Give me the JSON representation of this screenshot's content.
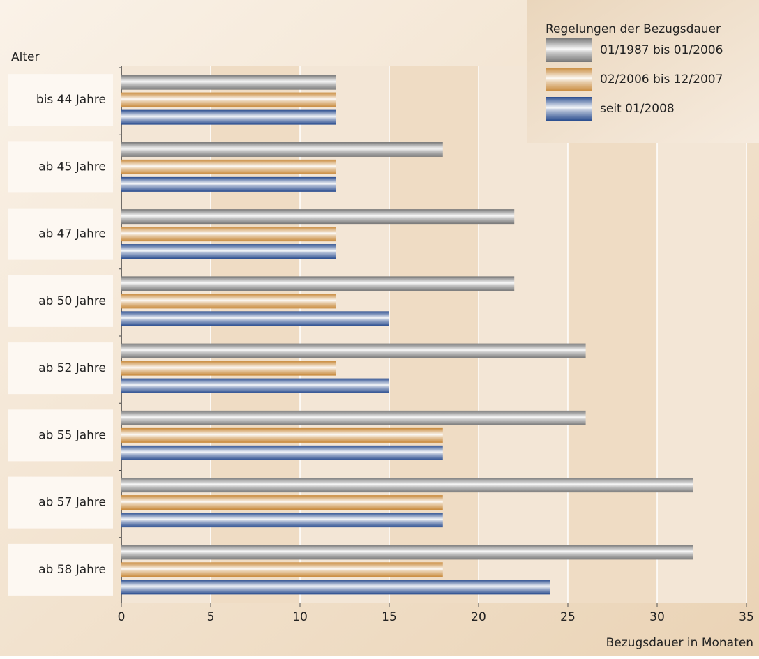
{
  "chart_data": {
    "type": "hbar",
    "y_label": "Alter",
    "x_label": "Bezugsdauer in Monaten",
    "legend_title": "Regelungen der Bezugsdauer",
    "categories": [
      "bis 44 Jahre",
      "ab 45 Jahre",
      "ab 47 Jahre",
      "ab 50 Jahre",
      "ab 52 Jahre",
      "ab 55 Jahre",
      "ab 57 Jahre",
      "ab 58 Jahre"
    ],
    "series": [
      {
        "name": "01/1987 bis 01/2006",
        "color": "#777777",
        "values": [
          12,
          18,
          22,
          22,
          26,
          26,
          32,
          32
        ]
      },
      {
        "name": "02/2006 bis 12/2007",
        "color": "#c8893a",
        "values": [
          12,
          12,
          12,
          12,
          12,
          18,
          18,
          18
        ]
      },
      {
        "name": "seit 01/2008",
        "color": "#2a4d8f",
        "values": [
          12,
          12,
          12,
          15,
          15,
          18,
          18,
          24
        ]
      }
    ],
    "xlim": [
      0,
      35
    ],
    "xticks": [
      0,
      5,
      10,
      15,
      20,
      25,
      30,
      35
    ],
    "grid": true,
    "legend": "top-right"
  }
}
